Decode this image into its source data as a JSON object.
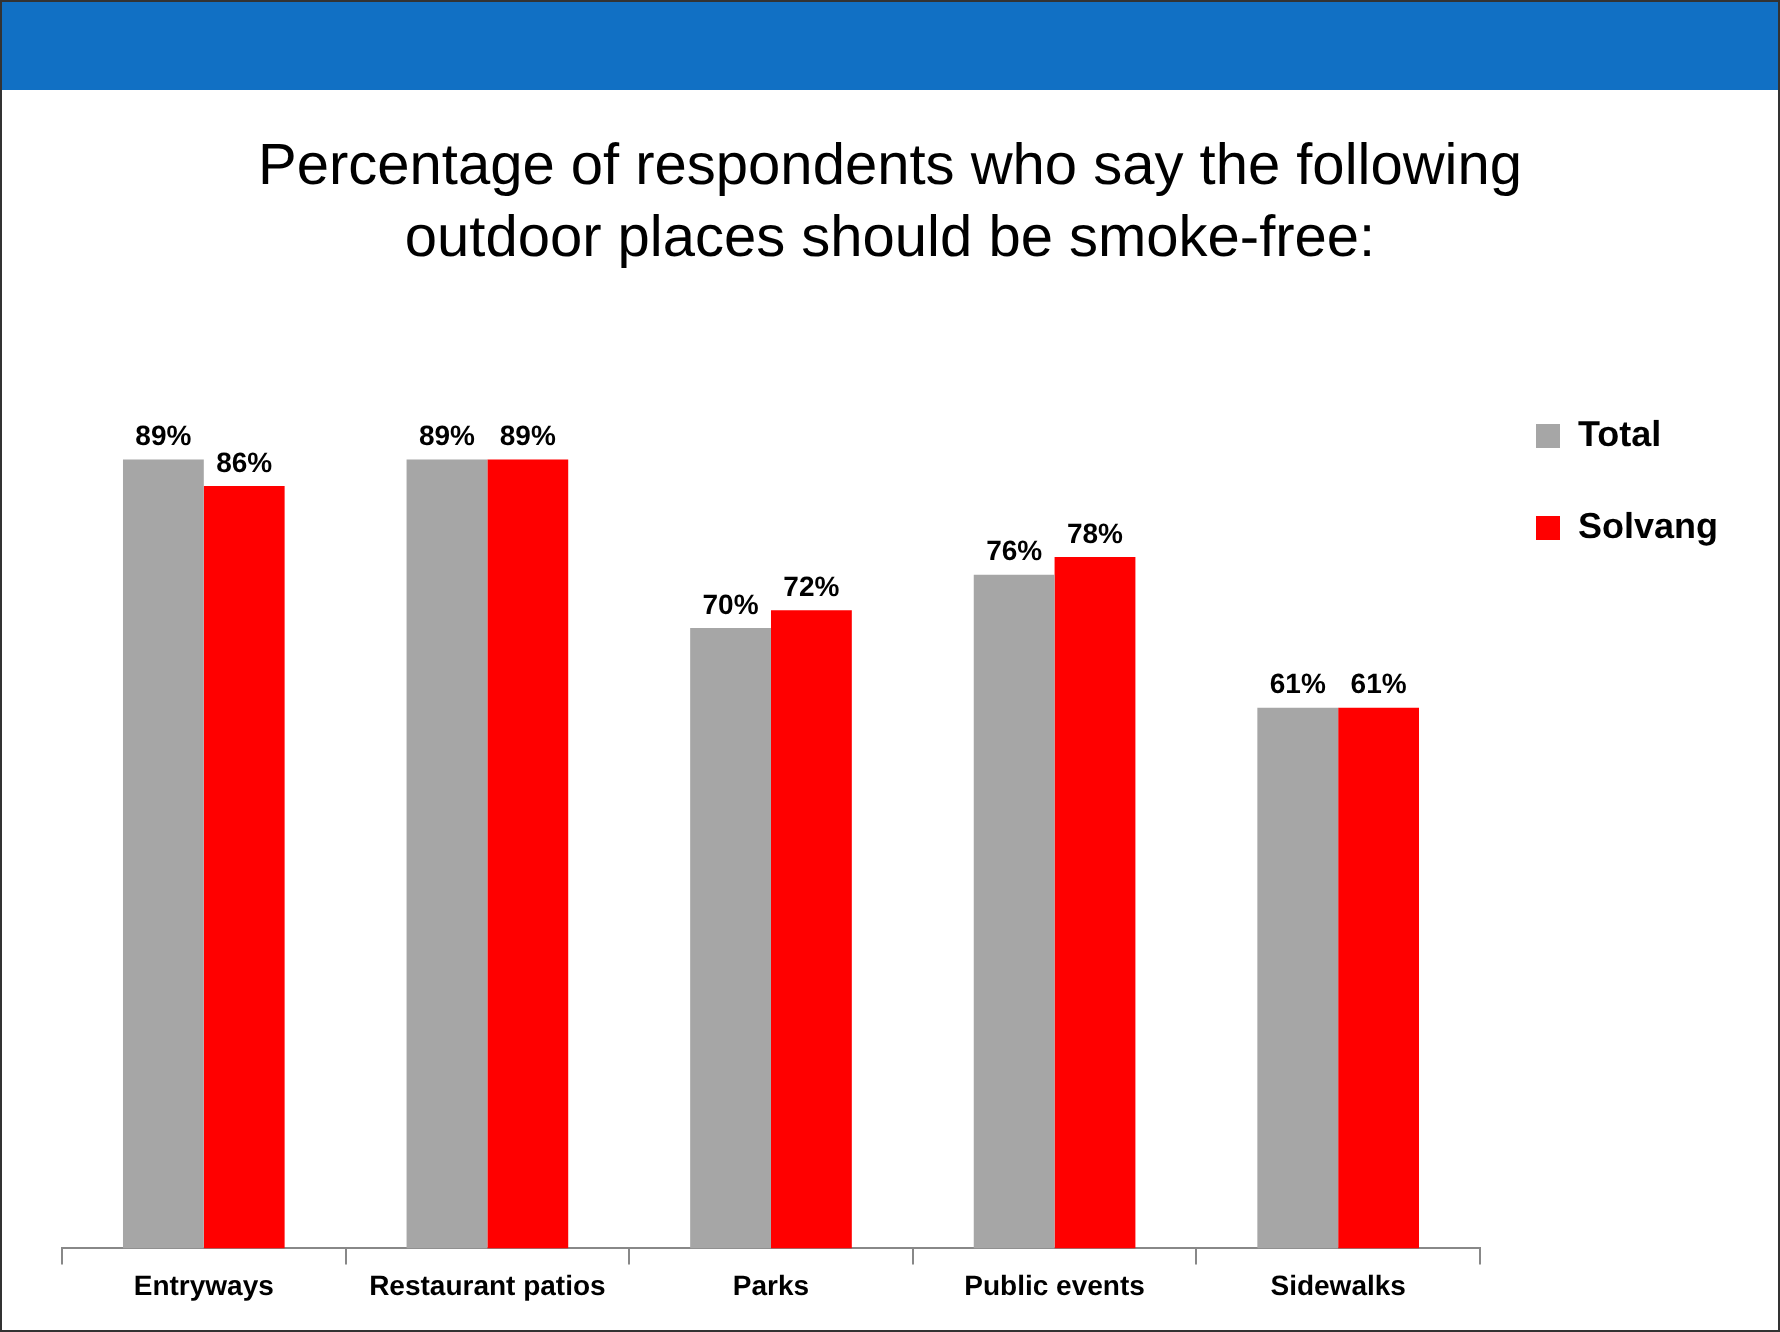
{
  "chart_data": {
    "type": "bar",
    "title": "Percentage of respondents who say the following outdoor places should be smoke-free:",
    "categories": [
      "Entryways",
      "Restaurant patios",
      "Parks",
      "Public events",
      "Sidewalks"
    ],
    "series": [
      {
        "name": "Total",
        "color": "#a6a6a6",
        "values": [
          89,
          89,
          70,
          76,
          61
        ],
        "value_labels": [
          "89%",
          "89%",
          "70%",
          "76%",
          "61%"
        ]
      },
      {
        "name": "Solvang",
        "color": "#ff0000",
        "values": [
          86,
          89,
          72,
          78,
          61
        ],
        "value_labels": [
          "86%",
          "89%",
          "72%",
          "78%",
          "61%"
        ]
      }
    ],
    "tick_labels": "x",
    "grid": false,
    "legend": "top right"
  }
}
